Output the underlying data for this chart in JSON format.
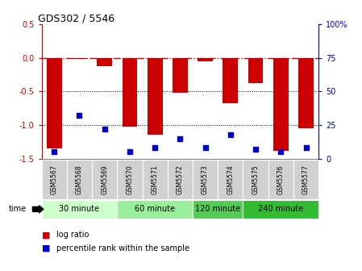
{
  "title": "GDS302 / 5546",
  "samples": [
    "GSM5567",
    "GSM5568",
    "GSM5569",
    "GSM5570",
    "GSM5571",
    "GSM5572",
    "GSM5573",
    "GSM5574",
    "GSM5575",
    "GSM5576",
    "GSM5577"
  ],
  "log_ratio": [
    -1.35,
    -0.02,
    -0.12,
    -1.02,
    -1.15,
    -0.52,
    -0.05,
    -0.68,
    -0.38,
    -1.38,
    -1.05
  ],
  "percentile_rank": [
    5,
    32,
    22,
    5,
    8,
    15,
    8,
    18,
    7,
    5,
    8
  ],
  "ylim": [
    -1.5,
    0.5
  ],
  "y2lim": [
    0,
    100
  ],
  "bar_color": "#cc0000",
  "dot_color": "#0000cc",
  "zero_line_color": "#cc0000",
  "groups": [
    {
      "label": "30 minute",
      "start": 0,
      "end": 3,
      "color": "#ccffcc"
    },
    {
      "label": "60 minute",
      "start": 3,
      "end": 6,
      "color": "#99ee99"
    },
    {
      "label": "120 minute",
      "start": 6,
      "end": 8,
      "color": "#55cc55"
    },
    {
      "label": "240 minute",
      "start": 8,
      "end": 11,
      "color": "#33bb33"
    }
  ],
  "legend_log_ratio_color": "#cc0000",
  "legend_percentile_color": "#0000cc",
  "yticks_left": [
    0.5,
    0.0,
    -0.5,
    -1.0,
    -1.5
  ],
  "yticks_right": [
    100,
    75,
    50,
    25,
    0
  ],
  "ytick_labels_right": [
    "100%",
    "75",
    "50",
    "25",
    "0"
  ],
  "sample_box_color": "#d0d0d0",
  "background_color": "#ffffff"
}
